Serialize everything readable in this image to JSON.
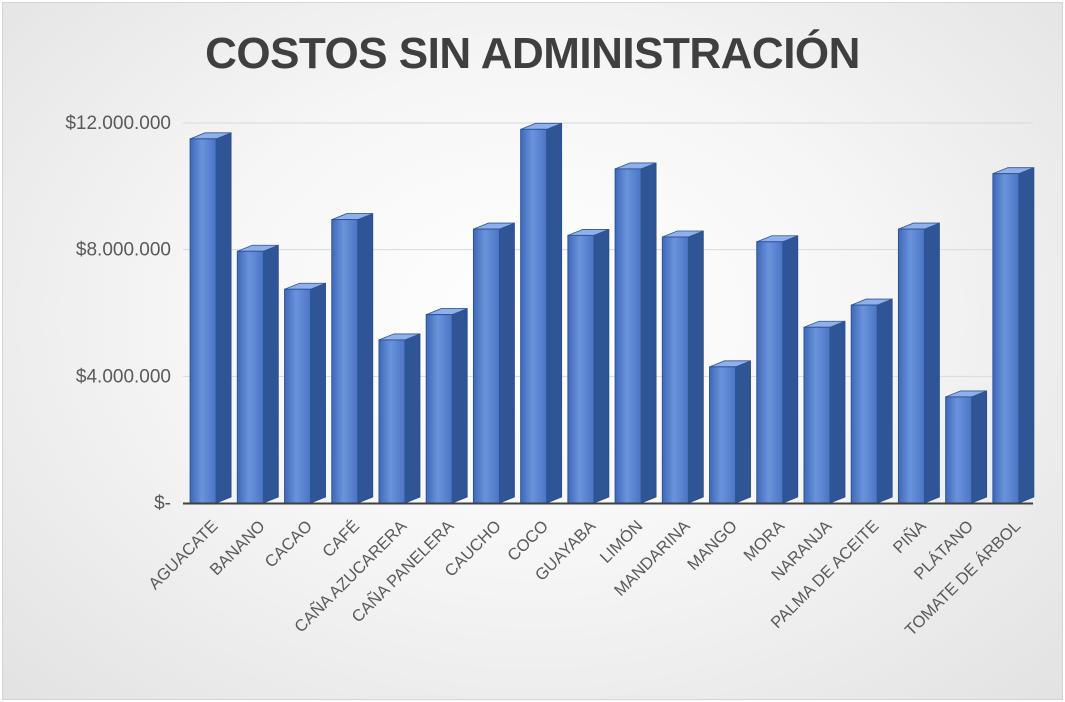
{
  "chart_data": {
    "type": "bar",
    "title": "COSTOS SIN ADMINISTRACIÓN",
    "xlabel": "",
    "ylabel": "",
    "ylim": [
      0,
      12000000
    ],
    "y_ticks": [
      0,
      4000000,
      8000000,
      12000000
    ],
    "y_tick_labels": [
      "$-",
      "$4.000.000",
      "$8.000.000",
      "$12.000.000"
    ],
    "grid": true,
    "legend": "none",
    "bar_color": "#4472C4",
    "categories": [
      "AGUACATE",
      "BANANO",
      "CACAO",
      "CAFÉ",
      "CAÑA AZUCARERA",
      "CAÑA PANELERA",
      "CAUCHO",
      "COCO",
      "GUAYABA",
      "LIMÓN",
      "MANDARINA",
      "MANGO",
      "MORA",
      "NARANJA",
      "PALMA DE ACEITE",
      "PIÑA",
      "PLÁTANO",
      "TOMATE DE ÁRBOL"
    ],
    "values": [
      11500000,
      7950000,
      6750000,
      8950000,
      5150000,
      5950000,
      8650000,
      11800000,
      8450000,
      10550000,
      8400000,
      4300000,
      8250000,
      5550000,
      6250000,
      8650000,
      3350000,
      10400000
    ]
  }
}
